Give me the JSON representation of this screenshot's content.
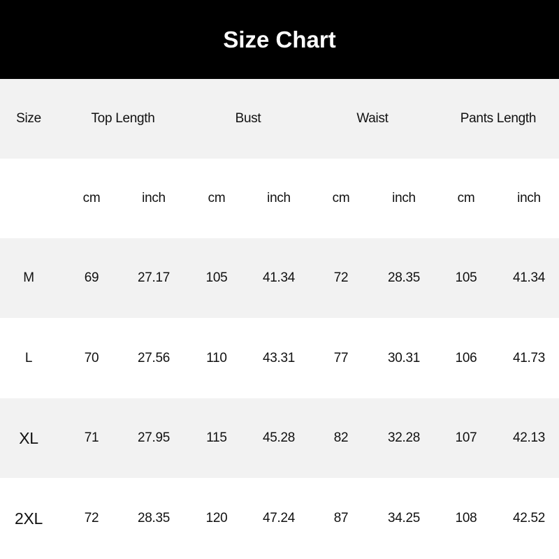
{
  "title": "Size Chart",
  "colors": {
    "title_bar": "#000000",
    "band_grey": "#f2f2f2",
    "band_white": "#ffffff"
  },
  "header": {
    "size": "Size",
    "groups": [
      "Top Length",
      "Bust",
      "Waist",
      "Pants Length"
    ]
  },
  "units": [
    "cm",
    "inch",
    "cm",
    "inch",
    "cm",
    "inch",
    "cm",
    "inch"
  ],
  "rows": [
    {
      "size": "M",
      "values": [
        "69",
        "27.17",
        "105",
        "41.34",
        "72",
        "28.35",
        "105",
        "41.34"
      ]
    },
    {
      "size": "L",
      "values": [
        "70",
        "27.56",
        "110",
        "43.31",
        "77",
        "30.31",
        "106",
        "41.73"
      ]
    },
    {
      "size": "XL",
      "values": [
        "71",
        "27.95",
        "115",
        "45.28",
        "82",
        "32.28",
        "107",
        "42.13"
      ]
    },
    {
      "size": "2XL",
      "values": [
        "72",
        "28.35",
        "120",
        "47.24",
        "87",
        "34.25",
        "108",
        "42.52"
      ]
    }
  ]
}
